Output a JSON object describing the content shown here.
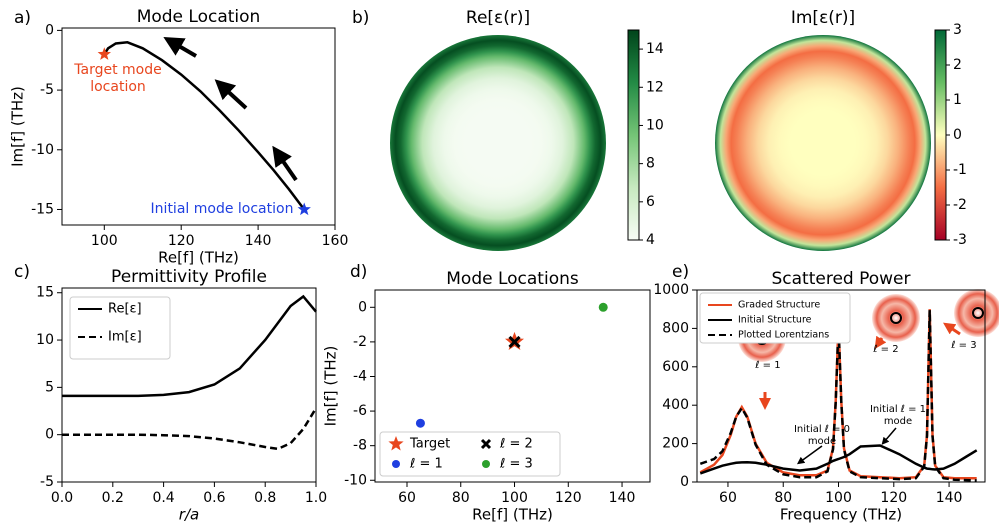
{
  "chart_data": [
    {
      "type": "line",
      "label": "a)",
      "title": "Mode Location",
      "xlabel": "Re[f] (THz)",
      "ylabel": "Im[f] (THz)",
      "x": [
        152,
        148,
        144,
        140,
        135,
        130,
        125,
        120,
        115,
        110,
        106,
        103,
        101,
        100
      ],
      "values": [
        -15,
        -13.3,
        -11.7,
        -10.2,
        -8.4,
        -6.7,
        -5.1,
        -3.7,
        -2.5,
        -1.5,
        -1.0,
        -1.1,
        -1.5,
        -2
      ],
      "color": "#000000",
      "points": [
        {
          "x": 100,
          "y": -2,
          "color": "#e8461e",
          "marker": "star",
          "label": "Target mode location"
        },
        {
          "x": 152,
          "y": -15,
          "color": "#1f3fe0",
          "marker": "star",
          "label": "Initial mode location"
        }
      ],
      "xlim": [
        89,
        160
      ],
      "xticks": [
        100,
        120,
        140,
        160
      ],
      "ylim": [
        -16.3,
        0.2
      ],
      "yticks": [
        0,
        -5,
        -10,
        -15
      ]
    },
    {
      "type": "heatmap",
      "label": "b)",
      "title": "Re[ε(r)]",
      "colormap": "Greens",
      "clim": [
        4,
        15
      ],
      "cticks": [
        4,
        6,
        8,
        10,
        12,
        14
      ]
    },
    {
      "type": "heatmap",
      "title": "Im[ε(r)]",
      "colormap": "RdYlGn",
      "clim": [
        -3,
        3
      ],
      "cticks": [
        -3,
        -2,
        -1,
        0,
        1,
        2,
        3
      ]
    },
    {
      "type": "line",
      "label": "c)",
      "title": "Permittivity Profile",
      "xlabel": "r/a",
      "x": [
        0,
        0.1,
        0.2,
        0.3,
        0.4,
        0.5,
        0.6,
        0.7,
        0.8,
        0.85,
        0.9,
        0.95,
        1.0
      ],
      "series": [
        {
          "name": "Re[ε]",
          "color": "#000000",
          "dash": "solid",
          "values": [
            4.1,
            4.1,
            4.1,
            4.1,
            4.2,
            4.5,
            5.3,
            7,
            10,
            11.8,
            13.6,
            14.6,
            13
          ]
        },
        {
          "name": "Im[ε]",
          "color": "#000000",
          "dash": "dashed",
          "values": [
            0,
            0,
            0,
            0,
            -0.05,
            -0.15,
            -0.4,
            -0.8,
            -1.3,
            -1.5,
            -0.9,
            0.6,
            2.8
          ]
        }
      ],
      "legend": "upper left",
      "xlim": [
        0,
        1
      ],
      "xticks": [
        {
          "value": 0,
          "label": "0.0"
        },
        0.2,
        0.4,
        0.6,
        0.8,
        {
          "value": 1,
          "label": "1.0"
        }
      ],
      "ylim": [
        -5,
        15.5
      ],
      "yticks": [
        -5,
        0,
        5,
        10,
        15
      ]
    },
    {
      "type": "scatter",
      "label": "d)",
      "title": "Mode Locations",
      "xlabel": "Re[f] (THz)",
      "ylabel": "Im[f] (THz)",
      "series": [
        {
          "name": "Target",
          "color": "#e8461e",
          "marker": "star",
          "x": [
            100
          ],
          "values": [
            -2
          ]
        },
        {
          "name": "ℓ = 1",
          "color": "#1f3fe0",
          "marker": "circle",
          "x": [
            65
          ],
          "values": [
            -6.7
          ]
        },
        {
          "name": "ℓ = 2",
          "color": "#000000",
          "marker": "x",
          "x": [
            100
          ],
          "values": [
            -2
          ]
        },
        {
          "name": "ℓ = 3",
          "color": "#2ca02c",
          "marker": "circle",
          "x": [
            133
          ],
          "values": [
            0
          ]
        }
      ],
      "legend": "lower left",
      "xlim": [
        48.1,
        150.4
      ],
      "xticks": [
        60,
        80,
        100,
        120,
        140
      ],
      "ylim": [
        -10.1,
        1.0
      ],
      "yticks": [
        0,
        -2,
        -4,
        -6,
        -8,
        -10
      ]
    },
    {
      "type": "line",
      "label": "e)",
      "title": "Scattered Power",
      "xlabel": "Frequency (THz)",
      "x": [
        50,
        55,
        58,
        61,
        63,
        65,
        67,
        70,
        74,
        80,
        86,
        92,
        96,
        98,
        99,
        100,
        101,
        102,
        104,
        108,
        115,
        122,
        128,
        131,
        132,
        133,
        134,
        135,
        138,
        142,
        146,
        150
      ],
      "series": [
        {
          "name": "Graded Structure",
          "color": "#e8461e",
          "dash": "solid",
          "values": [
            50,
            90,
            140,
            245,
            340,
            390,
            340,
            200,
            100,
            50,
            35,
            35,
            60,
            175,
            420,
            825,
            420,
            175,
            60,
            30,
            25,
            20,
            25,
            85,
            245,
            900,
            245,
            85,
            25,
            20,
            20,
            20
          ]
        },
        {
          "name": "Initial Structure",
          "color": "#000000",
          "dash": "solid",
          "values": [
            45,
            70,
            85,
            95,
            100,
            102,
            103,
            100,
            90,
            70,
            60,
            70,
            95,
            110,
            115,
            120,
            125,
            130,
            145,
            185,
            190,
            145,
            95,
            75,
            70,
            68,
            66,
            65,
            70,
            95,
            130,
            165
          ]
        },
        {
          "name": "Plotted Lorentzians",
          "color": "#000000",
          "dash": "dashed",
          "values": [
            95,
            120,
            160,
            255,
            340,
            385,
            335,
            195,
            90,
            40,
            25,
            25,
            55,
            170,
            415,
            815,
            415,
            170,
            55,
            25,
            20,
            15,
            20,
            80,
            240,
            895,
            240,
            80,
            20,
            12,
            10,
            8
          ]
        }
      ],
      "annotations": [
        "Initial ℓ = 0 mode",
        "Initial ℓ = 1 mode",
        "ℓ = 1",
        "ℓ = 2",
        "ℓ = 3"
      ],
      "legend": "upper left",
      "xlim": [
        48.8,
        153
      ],
      "xticks": [
        60,
        80,
        100,
        120,
        140
      ],
      "ylim": [
        0,
        1000
      ],
      "yticks": [
        0,
        200,
        400,
        600,
        800,
        1000
      ]
    }
  ]
}
